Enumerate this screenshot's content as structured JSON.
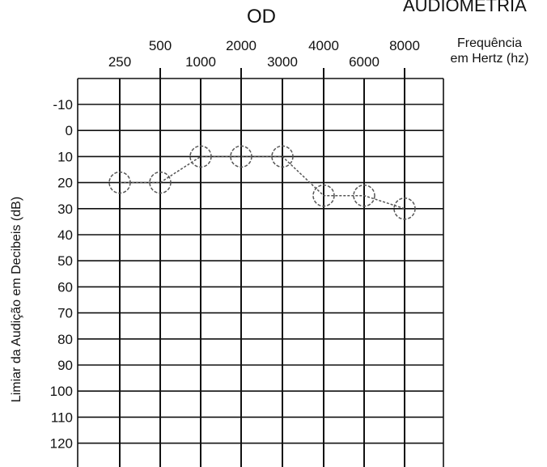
{
  "header": {
    "top_right_text": "AUDIOMETRIA"
  },
  "chart_data": {
    "type": "line",
    "title": "OD",
    "xlabel": "Frequência\nem Hertz (hz)",
    "ylabel": "Limiar da Audição em Decibeis (dB)",
    "x": [
      250,
      500,
      1000,
      2000,
      3000,
      4000,
      6000,
      8000
    ],
    "x_tick_labels_upper": [
      "500",
      "2000",
      "4000",
      "8000"
    ],
    "x_tick_labels_lower": [
      "250",
      "1000",
      "3000",
      "6000"
    ],
    "y_tick_labels": [
      "-10",
      "0",
      "10",
      "20",
      "30",
      "40",
      "50",
      "60",
      "70",
      "80",
      "90",
      "100",
      "110",
      "120"
    ],
    "ylim": [
      -10,
      120
    ],
    "y_inverted": true,
    "grid": true,
    "series": [
      {
        "values": [
          20,
          20,
          10,
          10,
          10,
          25,
          25,
          30
        ],
        "marker": "circle",
        "color": "#555555"
      }
    ]
  }
}
